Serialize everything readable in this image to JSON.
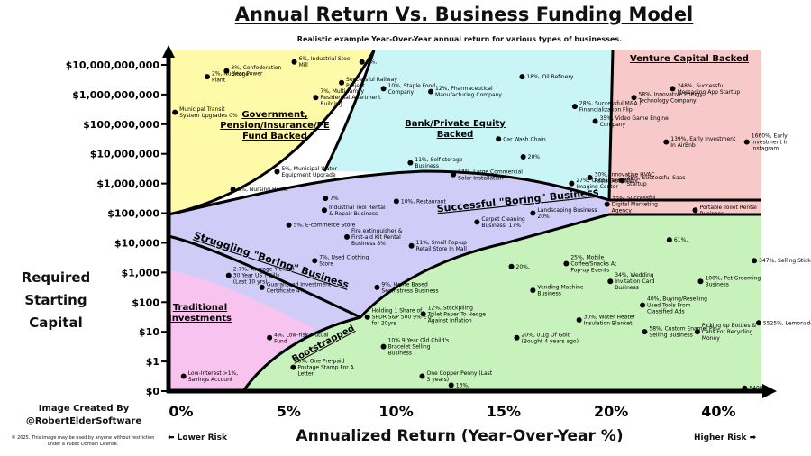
{
  "chart_data": {
    "type": "scatter",
    "title": "Annual Return Vs. Business Funding Model",
    "subtitle": "Realistic example Year-Over-Year annual return for various types of businesses.",
    "xlabel": "Annualized Return (Year-Over-Year %)",
    "ylabel": "Required Starting Capital",
    "x_ticks": [
      {
        "value": 0,
        "label": "0%"
      },
      {
        "value": 10,
        "label": "5%"
      },
      {
        "value": 20,
        "label": "10%"
      },
      {
        "value": 30,
        "label": "15%"
      },
      {
        "value": 40,
        "label": "20%"
      },
      {
        "value": 50,
        "label": "40%"
      }
    ],
    "y_ticks": [
      {
        "value": 0,
        "label": "$0"
      },
      {
        "value": 1,
        "label": "$1"
      },
      {
        "value": 2,
        "label": "$10"
      },
      {
        "value": 3,
        "label": "$100"
      },
      {
        "value": 4,
        "label": "$1,000"
      },
      {
        "value": 5,
        "label": "$10,000"
      },
      {
        "value": 6,
        "label": "$100,000"
      },
      {
        "value": 7,
        "label": "$1,000,000"
      },
      {
        "value": 8,
        "label": "$10,000,000"
      },
      {
        "value": 9,
        "label": "$100,000,000"
      },
      {
        "value": 10,
        "label": "$1,000,000,000"
      },
      {
        "value": 11,
        "label": "$10,000,000,000"
      }
    ],
    "regions": [
      {
        "name": "Government, Pension/Insurance/PE Fund Backed",
        "color": "#fffaa8"
      },
      {
        "name": "Bank/Private Equity Backed",
        "color": "#c9f5f7"
      },
      {
        "name": "Venture Capital Backed",
        "color": "#f8c9c9"
      },
      {
        "name": "Successful \"Boring\" Business",
        "color": "#cfcdf7"
      },
      {
        "name": "Struggling \"Boring\" Business",
        "color": "#cfcdf7"
      },
      {
        "name": "Traditional Investments",
        "color": "#f8c4ef"
      },
      {
        "name": "Bootstrapped",
        "color": "#c8f2bb"
      }
    ],
    "points": [
      {
        "text": "2%, Nuclear Power Plant",
        "x": 3.6,
        "y": 10.6
      },
      {
        "text": "3%, Confederation Bridge",
        "x": 5.4,
        "y": 10.8
      },
      {
        "text": "6%, Industrial Steel Mill",
        "x": 11.7,
        "y": 11.1
      },
      {
        "text": "9%,",
        "x": 18.0,
        "y": 11.1
      },
      {
        "text": "Successful Railway Project",
        "x": 16.1,
        "y": 10.4
      },
      {
        "text": "Municipal Transit System Upgrades 0%",
        "x": 0.6,
        "y": 9.4
      },
      {
        "text": "7%, Multi-family Residential Apartment Building",
        "x": 13.7,
        "y": 9.9
      },
      {
        "text": "5%, Municipal Water Equipment Upgrade",
        "x": 10.1,
        "y": 7.4
      },
      {
        "text": "3%, Nursing Home",
        "x": 6.0,
        "y": 6.8
      },
      {
        "text": "10%, Staple Food Company",
        "x": 20.0,
        "y": 10.2
      },
      {
        "text": "12%, Pharmaceutical Manufacturing Company",
        "x": 24.4,
        "y": 10.1
      },
      {
        "text": "18%, Oil Refinery",
        "x": 32.9,
        "y": 10.6
      },
      {
        "text": "28%, Successful M&A / Financialization Flip",
        "x": 37.8,
        "y": 9.6
      },
      {
        "text": "Car Wash Chain",
        "x": 30.7,
        "y": 8.5
      },
      {
        "text": "20%",
        "x": 33.0,
        "y": 7.9
      },
      {
        "text": "11%, Self-storage Business",
        "x": 22.5,
        "y": 7.7
      },
      {
        "text": "13%, Large Commercial Solar Installation",
        "x": 26.5,
        "y": 7.3
      },
      {
        "text": "27%, Outpatient MRI Imaging Center",
        "x": 37.5,
        "y": 7.0
      },
      {
        "text": "248%, Successful Messaging App Startup",
        "x": 46.9,
        "y": 10.2
      },
      {
        "text": "58%, Innovative Energy Technology Company",
        "x": 43.3,
        "y": 9.9
      },
      {
        "text": "35%, Video Game Engine Company",
        "x": 39.7,
        "y": 9.1
      },
      {
        "text": "139%, Early Investment In AirBnb",
        "x": 46.3,
        "y": 8.4
      },
      {
        "text": "1660%, Early Investment In Instagram",
        "x": 53.8,
        "y": 8.4
      },
      {
        "text": "30%, Innovative HVAC Parts Distributor",
        "x": 39.2,
        "y": 7.2
      },
      {
        "text": "38%, Successful Saas Startup",
        "x": 42.2,
        "y": 7.1
      },
      {
        "text": "7%",
        "x": 14.6,
        "y": 6.5
      },
      {
        "text": "10%, Restaurant",
        "x": 21.2,
        "y": 6.4
      },
      {
        "text": "Industrial Tool Rental & Repair Business",
        "x": 14.5,
        "y": 6.1
      },
      {
        "text": "5%, E-commerce Store",
        "x": 11.2,
        "y": 5.6
      },
      {
        "text": "Fire extinguisher & First-aid Kit Rental Business 8%",
        "x": 16.6,
        "y": 5.2
      },
      {
        "text": "Carpet Cleaning Business, 17%",
        "x": 28.7,
        "y": 5.7
      },
      {
        "text": "Landscaping Business 20%",
        "x": 33.9,
        "y": 6.0
      },
      {
        "text": "7%, Used Clothing Store",
        "x": 13.6,
        "y": 4.4
      },
      {
        "text": "11%, Small Pop-up Retail Store In Mall",
        "x": 22.6,
        "y": 4.9
      },
      {
        "text": "9%, Home Based Seamstress Business",
        "x": 19.4,
        "y": 3.5
      },
      {
        "text": "33%, Successful Digital Marketing Agency",
        "x": 40.8,
        "y": 6.3
      },
      {
        "text": "Portable Toilet Rental Business",
        "x": 49.0,
        "y": 6.1
      },
      {
        "text": "61%,",
        "x": 46.6,
        "y": 5.1
      },
      {
        "text": "20%,",
        "x": 31.9,
        "y": 4.2
      },
      {
        "text": "Vending Machine Business",
        "x": 33.9,
        "y": 3.4
      },
      {
        "text": "25%, Mobile Coffee/Snacks At Pop-up Events",
        "x": 37.0,
        "y": 4.3
      },
      {
        "text": "34%, Wedding Invitation Card Business",
        "x": 41.1,
        "y": 3.7
      },
      {
        "text": "40%, Buying/Reselling Used Tools From Classified Ads",
        "x": 44.1,
        "y": 2.9
      },
      {
        "text": "100%, Pet Grooming Business",
        "x": 49.5,
        "y": 3.7
      },
      {
        "text": "347%, Selling Stickers",
        "x": 54.5,
        "y": 4.4
      },
      {
        "text": "2.7%, Average Yield of 30 Year US T-Bills (Last 10 yrs)",
        "x": 5.6,
        "y": 3.9
      },
      {
        "text": "Guaranteed Investment Certificate 4%",
        "x": 8.7,
        "y": 3.5
      },
      {
        "text": "Holding 1 Share of SPDR S&P 500 9% ETF for 20yrs",
        "x": 18.5,
        "y": 2.5
      },
      {
        "text": "4%, Low-risk Mutual Fund",
        "x": 9.4,
        "y": 1.8
      },
      {
        "text": "Low-Interest >1%, Savings Account",
        "x": 1.4,
        "y": 0.5
      },
      {
        "text": "12%, Stockpiling Toilet Paper To Hedge Against Inflation",
        "x": 23.7,
        "y": 2.6
      },
      {
        "text": "10% 9 Year Old Child's Bracelet Selling Business",
        "x": 20.0,
        "y": 1.5
      },
      {
        "text": "20%, 0.1g Of Gold (Bought 4 years ago)",
        "x": 32.4,
        "y": 1.8
      },
      {
        "text": "30%, Water Heater Insulation Blanket",
        "x": 38.2,
        "y": 2.4
      },
      {
        "text": "58%, Custom Enamel Pin Selling Business",
        "x": 44.3,
        "y": 2.0
      },
      {
        "text": "Picking up Bottles & Cans For Recycling Money",
        "x": 49.2,
        "y": 2.0
      },
      {
        "text": "5525%, Lemonade Stand",
        "x": 54.9,
        "y": 2.3
      },
      {
        "text": "5400%",
        "x": 53.6,
        "y": 0.1
      },
      {
        "text": "6%, One Pre-paid Postage Stamp For A Letter",
        "x": 11.6,
        "y": 0.8
      },
      {
        "text": "One Copper Penny (Last 3 years)",
        "x": 23.6,
        "y": 0.5
      },
      {
        "text": "13%,",
        "x": 26.3,
        "y": 0.2
      }
    ]
  },
  "credit": {
    "line1": "Image Created By",
    "line2": "@RobertElderSoftware"
  },
  "license": "© 2025. This image may be used by anyone without restriction under a Public Domain License.",
  "risk": {
    "lower": "⬅ Lower Risk",
    "higher": "Higher Risk ➡"
  }
}
